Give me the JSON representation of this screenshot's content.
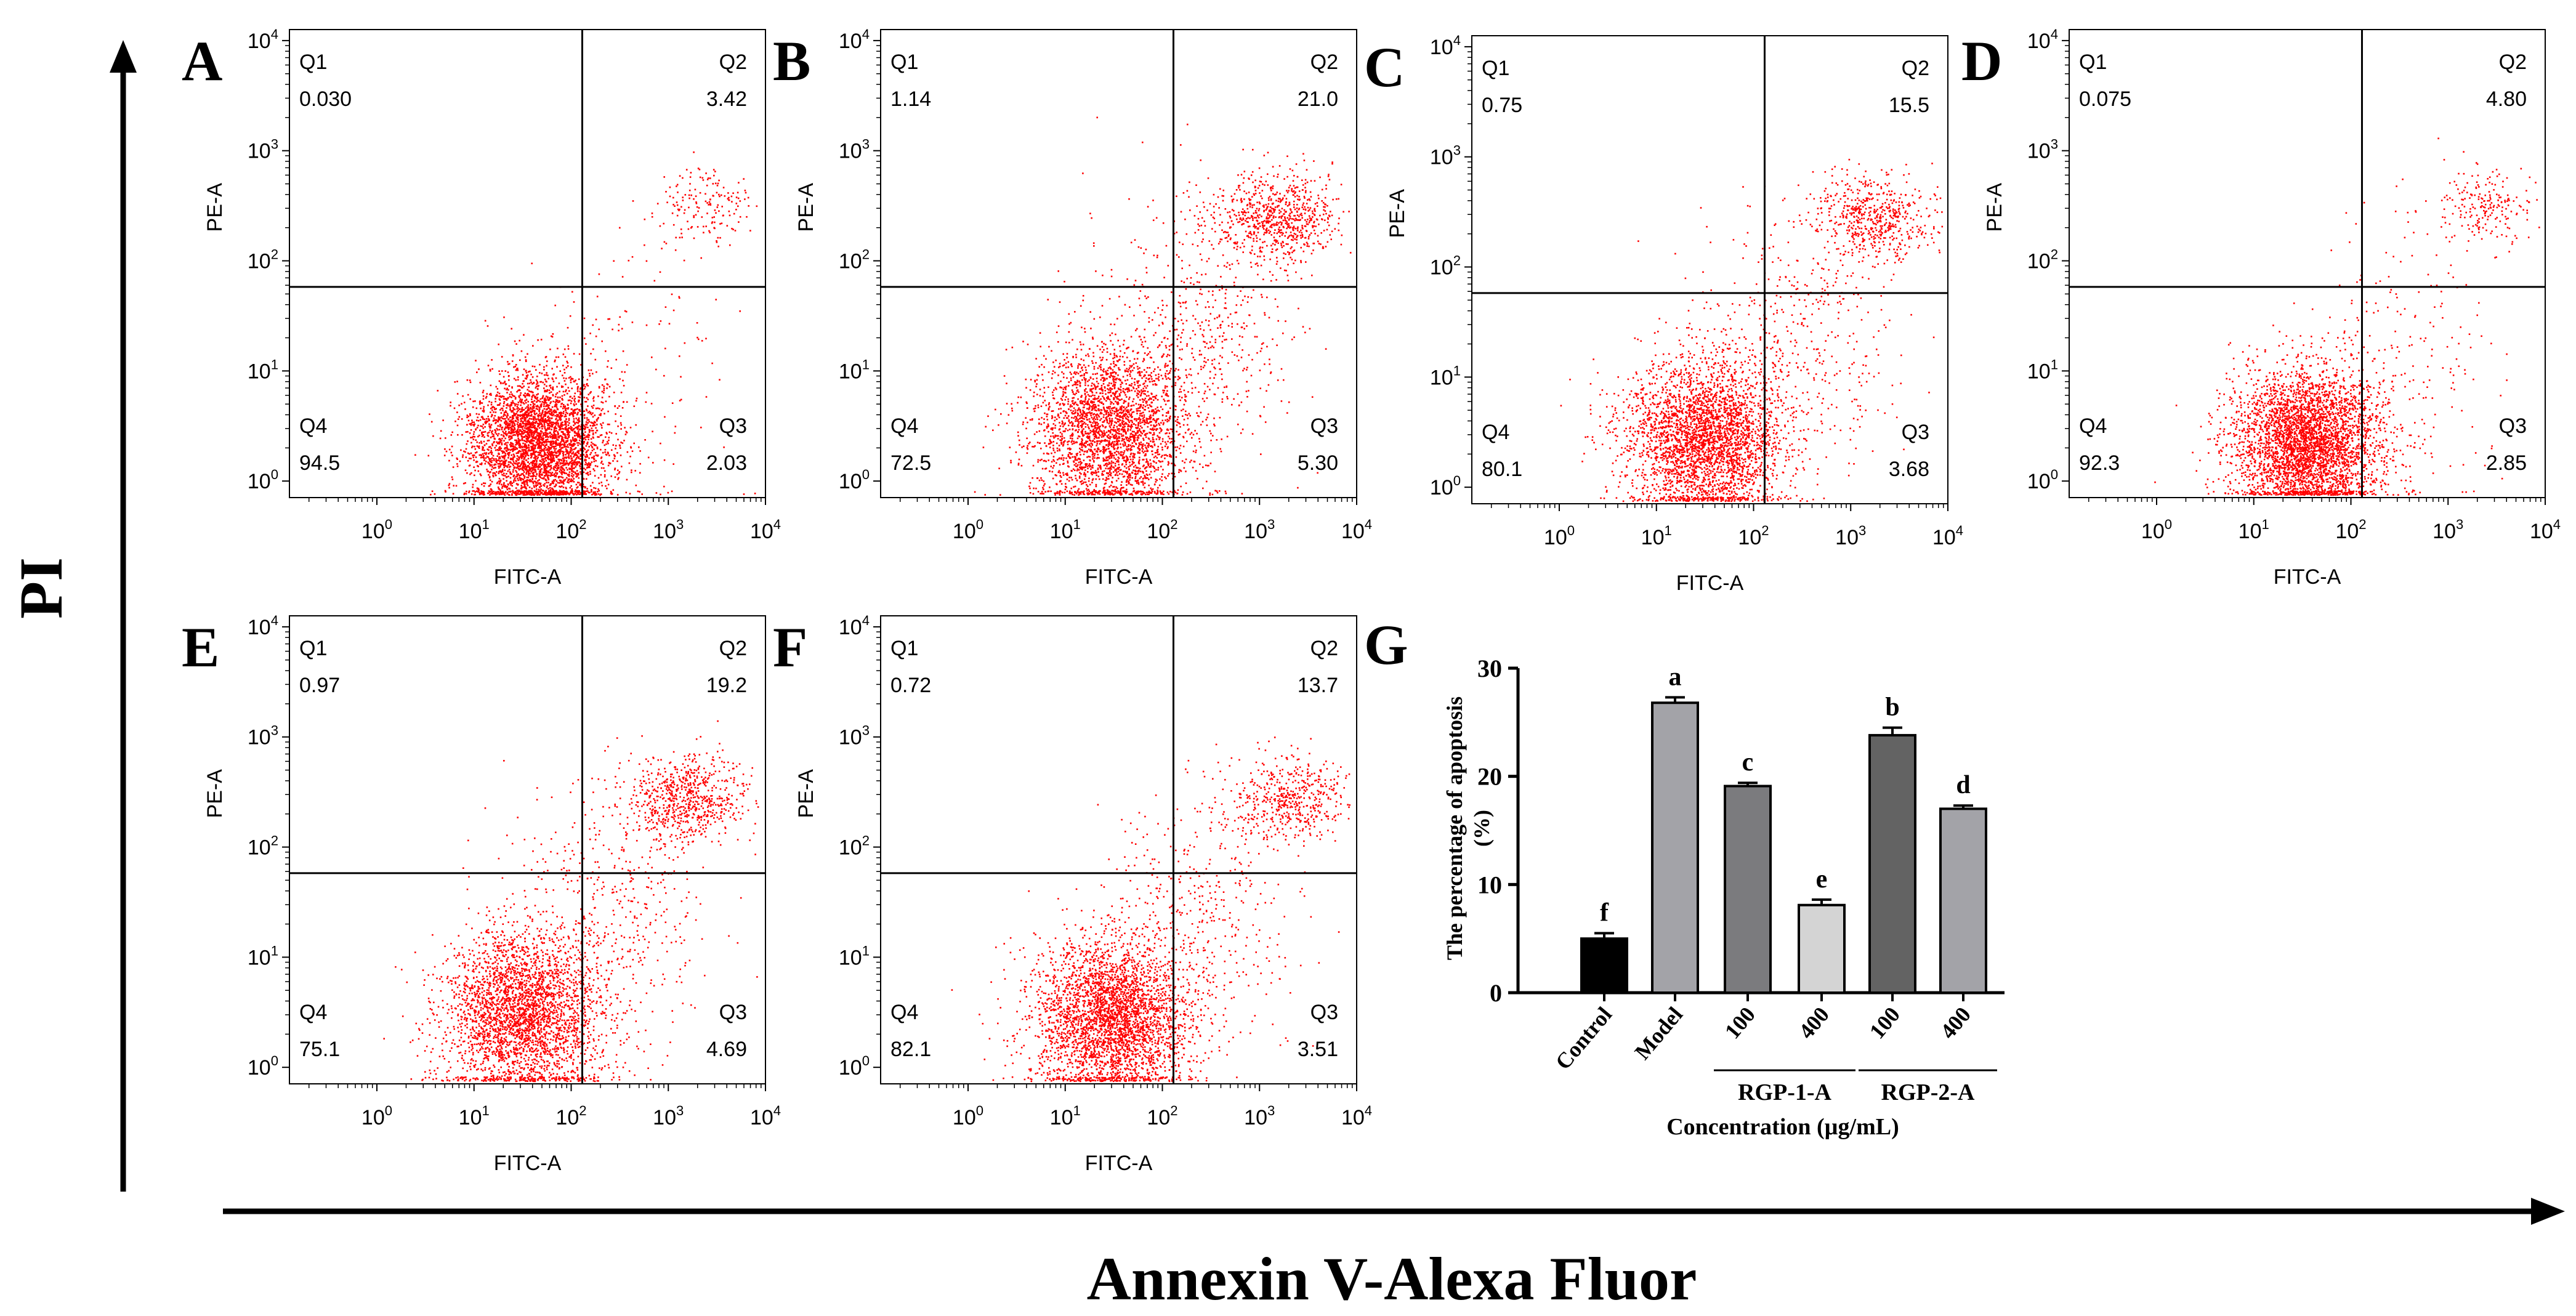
{
  "figure": {
    "y_axis_title": "PI",
    "x_axis_title": "Annexin V-Alexa Fluor"
  },
  "chart_data": [
    {
      "type": "scatter",
      "panel": "A",
      "xlabel": "FITC-A",
      "ylabel": "PE-A",
      "x_scale": "log",
      "y_scale": "log",
      "x_ticks": [
        "10^0",
        "10^1",
        "10^2",
        "10^3",
        "10^4"
      ],
      "y_ticks": [
        "10^0",
        "10^1",
        "10^2",
        "10^3",
        "10^4"
      ],
      "quadrant_gate": {
        "x": 130,
        "y": 58
      },
      "quadrants": {
        "Q1": {
          "name": "Q1",
          "value": "0.030"
        },
        "Q2": {
          "name": "Q2",
          "value": "3.42"
        },
        "Q3": {
          "name": "Q3",
          "value": "2.03"
        },
        "Q4": {
          "name": "Q4",
          "value": "94.5"
        }
      },
      "populations": [
        {
          "x": 45,
          "y": 2.2,
          "spread_x": 0.36,
          "spread_y": 0.33,
          "weight": 0.93
        },
        {
          "x": 2500,
          "y": 320,
          "spread_x": 0.25,
          "spread_y": 0.18,
          "weight": 0.04
        },
        {
          "x": 400,
          "y": 10,
          "spread_x": 0.5,
          "spread_y": 0.7,
          "weight": 0.03
        }
      ]
    },
    {
      "type": "scatter",
      "panel": "B",
      "xlabel": "FITC-A",
      "ylabel": "PE-A",
      "x_scale": "log",
      "y_scale": "log",
      "x_ticks": [
        "10^0",
        "10^1",
        "10^2",
        "10^3",
        "10^4"
      ],
      "y_ticks": [
        "10^0",
        "10^1",
        "10^2",
        "10^3",
        "10^4"
      ],
      "quadrant_gate": {
        "x": 130,
        "y": 58
      },
      "quadrants": {
        "Q1": {
          "name": "Q1",
          "value": "1.14"
        },
        "Q2": {
          "name": "Q2",
          "value": "21.0"
        },
        "Q3": {
          "name": "Q3",
          "value": "5.30"
        },
        "Q4": {
          "name": "Q4",
          "value": "72.5"
        }
      },
      "populations": [
        {
          "x": 30,
          "y": 3,
          "spread_x": 0.4,
          "spread_y": 0.38,
          "weight": 0.7
        },
        {
          "x": 1500,
          "y": 260,
          "spread_x": 0.33,
          "spread_y": 0.2,
          "weight": 0.18
        },
        {
          "x": 250,
          "y": 25,
          "spread_x": 0.5,
          "spread_y": 0.6,
          "weight": 0.12
        }
      ]
    },
    {
      "type": "scatter",
      "panel": "C",
      "xlabel": "FITC-A",
      "ylabel": "PE-A",
      "x_scale": "log",
      "y_scale": "log",
      "x_ticks": [
        "10^0",
        "10^1",
        "10^2",
        "10^3",
        "10^4"
      ],
      "y_ticks": [
        "10^0",
        "10^1",
        "10^2",
        "10^3",
        "10^4"
      ],
      "quadrant_gate": {
        "x": 130,
        "y": 58
      },
      "quadrants": {
        "Q1": {
          "name": "Q1",
          "value": "0.75"
        },
        "Q2": {
          "name": "Q2",
          "value": "15.5"
        },
        "Q3": {
          "name": "Q3",
          "value": "3.68"
        },
        "Q4": {
          "name": "Q4",
          "value": "80.1"
        }
      },
      "populations": [
        {
          "x": 30,
          "y": 2.8,
          "spread_x": 0.4,
          "spread_y": 0.36,
          "weight": 0.76
        },
        {
          "x": 1800,
          "y": 280,
          "spread_x": 0.3,
          "spread_y": 0.2,
          "weight": 0.14
        },
        {
          "x": 250,
          "y": 25,
          "spread_x": 0.5,
          "spread_y": 0.6,
          "weight": 0.1
        }
      ]
    },
    {
      "type": "scatter",
      "panel": "D",
      "xlabel": "FITC-A",
      "ylabel": "PE-A",
      "x_scale": "log",
      "y_scale": "log",
      "x_ticks": [
        "10^0",
        "10^1",
        "10^2",
        "10^3",
        "10^4"
      ],
      "y_ticks": [
        "10^0",
        "10^1",
        "10^2",
        "10^3",
        "10^4"
      ],
      "quadrant_gate": {
        "x": 130,
        "y": 58
      },
      "quadrants": {
        "Q1": {
          "name": "Q1",
          "value": "0.075"
        },
        "Q2": {
          "name": "Q2",
          "value": "4.80"
        },
        "Q3": {
          "name": "Q3",
          "value": "2.85"
        },
        "Q4": {
          "name": "Q4",
          "value": "92.3"
        }
      },
      "populations": [
        {
          "x": 35,
          "y": 2.3,
          "spread_x": 0.38,
          "spread_y": 0.33,
          "weight": 0.9
        },
        {
          "x": 2500,
          "y": 320,
          "spread_x": 0.25,
          "spread_y": 0.18,
          "weight": 0.05
        },
        {
          "x": 350,
          "y": 12,
          "spread_x": 0.5,
          "spread_y": 0.7,
          "weight": 0.05
        }
      ]
    },
    {
      "type": "scatter",
      "panel": "E",
      "xlabel": "FITC-A",
      "ylabel": "PE-A",
      "x_scale": "log",
      "y_scale": "log",
      "x_ticks": [
        "10^0",
        "10^1",
        "10^2",
        "10^3",
        "10^4"
      ],
      "y_ticks": [
        "10^0",
        "10^1",
        "10^2",
        "10^3",
        "10^4"
      ],
      "quadrant_gate": {
        "x": 130,
        "y": 58
      },
      "quadrants": {
        "Q1": {
          "name": "Q1",
          "value": "0.97"
        },
        "Q2": {
          "name": "Q2",
          "value": "19.2"
        },
        "Q3": {
          "name": "Q3",
          "value": "4.69"
        },
        "Q4": {
          "name": "Q4",
          "value": "75.1"
        }
      },
      "populations": [
        {
          "x": 30,
          "y": 3,
          "spread_x": 0.4,
          "spread_y": 0.38,
          "weight": 0.72
        },
        {
          "x": 1500,
          "y": 270,
          "spread_x": 0.33,
          "spread_y": 0.2,
          "weight": 0.17
        },
        {
          "x": 250,
          "y": 25,
          "spread_x": 0.5,
          "spread_y": 0.6,
          "weight": 0.11
        }
      ]
    },
    {
      "type": "scatter",
      "panel": "F",
      "xlabel": "FITC-A",
      "ylabel": "PE-A",
      "x_scale": "log",
      "y_scale": "log",
      "x_ticks": [
        "10^0",
        "10^1",
        "10^2",
        "10^3",
        "10^4"
      ],
      "y_ticks": [
        "10^0",
        "10^1",
        "10^2",
        "10^3",
        "10^4"
      ],
      "quadrant_gate": {
        "x": 130,
        "y": 58
      },
      "quadrants": {
        "Q1": {
          "name": "Q1",
          "value": "0.72"
        },
        "Q2": {
          "name": "Q2",
          "value": "13.7"
        },
        "Q3": {
          "name": "Q3",
          "value": "3.51"
        },
        "Q4": {
          "name": "Q4",
          "value": "82.1"
        }
      },
      "populations": [
        {
          "x": 30,
          "y": 2.8,
          "spread_x": 0.4,
          "spread_y": 0.36,
          "weight": 0.78
        },
        {
          "x": 1800,
          "y": 280,
          "spread_x": 0.3,
          "spread_y": 0.2,
          "weight": 0.12
        },
        {
          "x": 250,
          "y": 25,
          "spread_x": 0.5,
          "spread_y": 0.6,
          "weight": 0.1
        }
      ]
    },
    {
      "type": "bar",
      "panel": "G",
      "ylabel": "The percentage of apoptosis (%)",
      "xlabel": "Concentration (µg/mL)",
      "ylim": [
        0,
        30
      ],
      "y_ticks": [
        0,
        10,
        20,
        30
      ],
      "categories": [
        "Control",
        "Model",
        "100",
        "400",
        "100",
        "400"
      ],
      "values": [
        5.0,
        26.8,
        19.1,
        8.1,
        23.8,
        17.0
      ],
      "errors": [
        0.5,
        0.5,
        0.3,
        0.5,
        0.7,
        0.3
      ],
      "significance": [
        "f",
        "a",
        "c",
        "e",
        "b",
        "d"
      ],
      "bar_colors": [
        "#000000",
        "#a3a3a8",
        "#7b7b7e",
        "#d4d4d4",
        "#636363",
        "#a3a3a8"
      ],
      "groups": [
        {
          "label": "RGP-1-A",
          "members": [
            2,
            3
          ]
        },
        {
          "label": "RGP-2-A",
          "members": [
            4,
            5
          ]
        }
      ]
    }
  ]
}
